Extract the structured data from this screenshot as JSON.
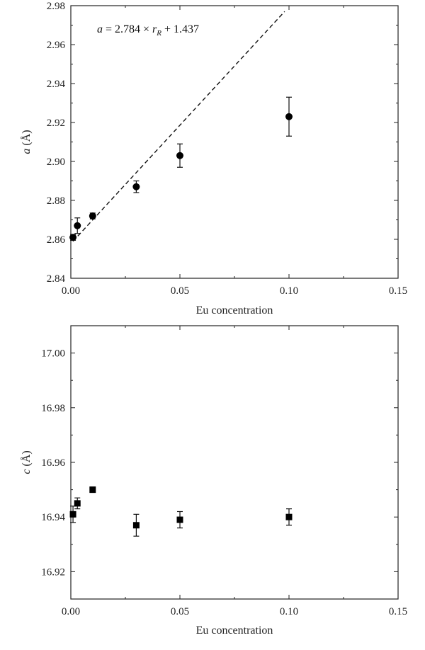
{
  "chart_data": [
    {
      "type": "scatter",
      "xlabel": "Eu concentration",
      "ylabel_var": "a",
      "ylabel_unit": "(Å)",
      "xlim": [
        0,
        0.15
      ],
      "ylim": [
        2.84,
        2.98
      ],
      "xticks": [
        0.0,
        0.05,
        0.1,
        0.15
      ],
      "xtick_labels": [
        "0.00",
        "0.05",
        "0.10",
        "0.15"
      ],
      "yticks": [
        2.84,
        2.86,
        2.88,
        2.9,
        2.92,
        2.94,
        2.96,
        2.98
      ],
      "ytick_labels": [
        "2.84",
        "2.86",
        "2.88",
        "2.90",
        "2.92",
        "2.94",
        "2.96",
        "2.98"
      ],
      "marker": "circle",
      "grid": false,
      "series": [
        {
          "x": [
            0.001,
            0.003,
            0.01,
            0.03,
            0.05,
            0.1
          ],
          "y": [
            2.861,
            2.867,
            2.872,
            2.887,
            2.903,
            2.923
          ],
          "err": [
            0.0015,
            0.004,
            0.0015,
            0.003,
            0.006,
            0.01
          ]
        }
      ],
      "fit_line": {
        "style": "dashed",
        "x": [
          0.001,
          0.098
        ],
        "y": [
          2.859,
          2.977
        ]
      },
      "annotation": {
        "lhs": "a",
        "mid": " = 2.784 × ",
        "var": "r",
        "sub": "R",
        "rhs": " + 1.437"
      }
    },
    {
      "type": "scatter",
      "xlabel": "Eu concentration",
      "ylabel_var": "c",
      "ylabel_unit": "(Å)",
      "xlim": [
        0,
        0.15
      ],
      "ylim": [
        16.91,
        17.01
      ],
      "xticks": [
        0.0,
        0.05,
        0.1,
        0.15
      ],
      "xtick_labels": [
        "0.00",
        "0.05",
        "0.10",
        "0.15"
      ],
      "yticks": [
        16.92,
        16.94,
        16.96,
        16.98,
        17.0
      ],
      "ytick_labels": [
        "16.92",
        "16.94",
        "16.96",
        "16.98",
        "17.00"
      ],
      "marker": "square",
      "grid": false,
      "series": [
        {
          "x": [
            0.001,
            0.003,
            0.01,
            0.03,
            0.05,
            0.1
          ],
          "y": [
            16.941,
            16.945,
            16.95,
            16.937,
            16.939,
            16.94
          ],
          "err": [
            0.003,
            0.002,
            0.001,
            0.004,
            0.003,
            0.003
          ]
        }
      ]
    }
  ]
}
